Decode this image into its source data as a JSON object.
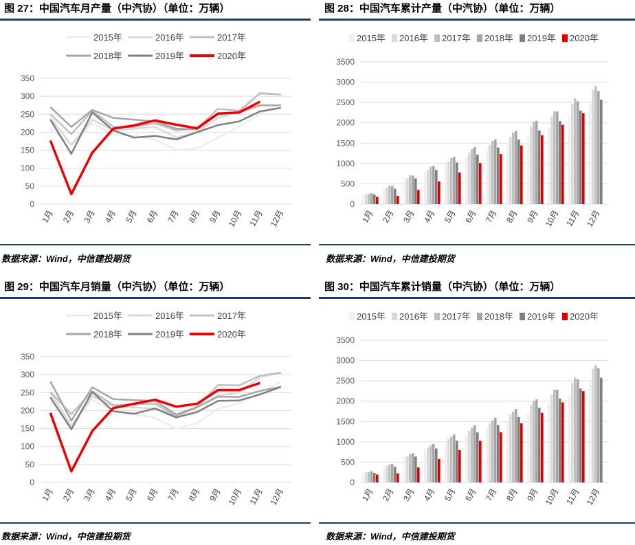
{
  "source_label": "数据来源：Wind，中信建投期货",
  "months": [
    "1月",
    "2月",
    "3月",
    "4月",
    "5月",
    "6月",
    "7月",
    "8月",
    "9月",
    "10月",
    "11月",
    "12月"
  ],
  "series_style": [
    {
      "name": "2015年",
      "line": "#ececec",
      "bar": "#f0f0f0"
    },
    {
      "name": "2016年",
      "line": "#d9d9d9",
      "bar": "#d9d9d9"
    },
    {
      "name": "2017年",
      "line": "#bfbfbf",
      "bar": "#bfbfbf"
    },
    {
      "name": "2018年",
      "line": "#a6a6a6",
      "bar": "#a6a6a6"
    },
    {
      "name": "2019年",
      "line": "#7f7f7f",
      "bar": "#7f7f7f"
    },
    {
      "name": "2020年",
      "line": "#ee0000",
      "bar": "#e00000"
    }
  ],
  "chart_data": [
    {
      "title": "图 27：中国汽车月产量（中汽协）（单位：万辆）",
      "type": "line",
      "ylim": [
        0,
        350
      ],
      "yticks": [
        0,
        50,
        100,
        150,
        200,
        250,
        300,
        350
      ],
      "categories": [
        "1月",
        "2月",
        "3月",
        "4月",
        "5月",
        "6月",
        "7月",
        "8月",
        "9月",
        "10月",
        "11月",
        "12月"
      ],
      "series": [
        {
          "name": "2015年",
          "values": [
            210,
            165,
            225,
            195,
            190,
            180,
            150,
            155,
            185,
            215,
            250,
            280
          ]
        },
        {
          "name": "2016年",
          "values": [
            240,
            165,
            235,
            205,
            210,
            215,
            185,
            200,
            240,
            255,
            310,
            305
          ]
        },
        {
          "name": "2017年",
          "values": [
            250,
            195,
            260,
            215,
            215,
            225,
            205,
            210,
            265,
            260,
            308,
            305
          ]
        },
        {
          "name": "2018年",
          "values": [
            270,
            215,
            262,
            240,
            235,
            230,
            210,
            208,
            250,
            255,
            275,
            275
          ]
        },
        {
          "name": "2019年",
          "values": [
            235,
            140,
            255,
            205,
            185,
            190,
            180,
            200,
            220,
            230,
            258,
            268
          ]
        },
        {
          "name": "2020年",
          "values": [
            177,
            28,
            143,
            210,
            219,
            233,
            221,
            211,
            252,
            255,
            285,
            null
          ]
        }
      ],
      "grid": true,
      "legend": "top"
    },
    {
      "title": "图 28：中国汽车累计产量（中汽协）（单位：万辆）",
      "type": "bar",
      "ylim": [
        0,
        3500
      ],
      "yticks": [
        0,
        500,
        1000,
        1500,
        2000,
        2500,
        3000,
        3500
      ],
      "categories": [
        "1月",
        "2月",
        "3月",
        "4月",
        "5月",
        "6月",
        "7月",
        "8月",
        "9月",
        "10月",
        "11月",
        "12月"
      ],
      "series": [
        {
          "name": "2015年",
          "values": [
            212,
            375,
            599,
            800,
            990,
            1170,
            1320,
            1470,
            1660,
            1880,
            2130,
            2450
          ]
        },
        {
          "name": "2016年",
          "values": [
            238,
            401,
            638,
            843,
            1053,
            1272,
            1457,
            1655,
            1897,
            2151,
            2463,
            2812
          ]
        },
        {
          "name": "2017年",
          "values": [
            255,
            449,
            710,
            923,
            1135,
            1353,
            1554,
            1762,
            2028,
            2288,
            2598,
            2902
          ]
        },
        {
          "name": "2018年",
          "values": [
            266,
            448,
            700,
            937,
            1162,
            1406,
            1591,
            1799,
            2051,
            2280,
            2532,
            2781
          ]
        },
        {
          "name": "2019年",
          "values": [
            237,
            378,
            634,
            839,
            1024,
            1214,
            1394,
            1589,
            1813,
            2045,
            2303,
            2572
          ]
        },
        {
          "name": "2020年",
          "values": [
            177,
            205,
            348,
            558,
            777,
            1011,
            1232,
            1443,
            1696,
            1951,
            2237,
            null
          ]
        }
      ],
      "grid": true,
      "legend": "top"
    },
    {
      "title": "图 29：中国汽车月销量（中汽协）（单位：万辆）",
      "type": "line",
      "ylim": [
        0,
        350
      ],
      "yticks": [
        0,
        50,
        100,
        150,
        200,
        250,
        300,
        350
      ],
      "categories": [
        "1月",
        "2月",
        "3月",
        "4月",
        "5月",
        "6月",
        "7月",
        "8月",
        "9月",
        "10月",
        "11月",
        "12月"
      ],
      "series": [
        {
          "name": "2015年",
          "values": [
            225,
            160,
            230,
            200,
            190,
            180,
            150,
            165,
            205,
            220,
            250,
            280
          ]
        },
        {
          "name": "2016年",
          "values": [
            250,
            158,
            240,
            212,
            209,
            205,
            185,
            208,
            242,
            250,
            293,
            305
          ]
        },
        {
          "name": "2017年",
          "values": [
            252,
            190,
            254,
            215,
            217,
            219,
            184,
            210,
            271,
            270,
            297,
            306
          ]
        },
        {
          "name": "2018年",
          "values": [
            281,
            172,
            265,
            232,
            229,
            227,
            189,
            210,
            239,
            238,
            255,
            266
          ]
        },
        {
          "name": "2019年",
          "values": [
            237,
            148,
            252,
            198,
            191,
            206,
            181,
            196,
            227,
            228,
            245,
            266
          ]
        },
        {
          "name": "2020年",
          "values": [
            194,
            31,
            143,
            207,
            219,
            230,
            211,
            219,
            257,
            257,
            277,
            null
          ]
        }
      ],
      "grid": true,
      "legend": "top"
    },
    {
      "title": "图 30：中国汽车累计销量（中汽协）（单位：万辆）",
      "type": "bar",
      "ylim": [
        0,
        3500
      ],
      "yticks": [
        0,
        500,
        1000,
        1500,
        2000,
        2500,
        3000,
        3500
      ],
      "categories": [
        "1月",
        "2月",
        "3月",
        "4月",
        "5月",
        "6月",
        "7月",
        "8月",
        "9月",
        "10月",
        "11月",
        "12月"
      ],
      "series": [
        {
          "name": "2015年",
          "values": [
            225,
            385,
            615,
            815,
            1005,
            1185,
            1335,
            1500,
            1705,
            1925,
            2175,
            2455
          ]
        },
        {
          "name": "2016年",
          "values": [
            250,
            408,
            648,
            860,
            1069,
            1274,
            1459,
            1667,
            1909,
            2159,
            2452,
            2802
          ]
        },
        {
          "name": "2017年",
          "values": [
            252,
            442,
            696,
            911,
            1128,
            1347,
            1531,
            1741,
            2012,
            2282,
            2579,
            2888
          ]
        },
        {
          "name": "2018年",
          "values": [
            281,
            453,
            718,
            950,
            1179,
            1406,
            1595,
            1805,
            2044,
            2282,
            2537,
            2808
          ]
        },
        {
          "name": "2019年",
          "values": [
            237,
            385,
            637,
            835,
            1026,
            1232,
            1413,
            1609,
            1837,
            2065,
            2311,
            2577
          ]
        },
        {
          "name": "2020年",
          "values": [
            194,
            225,
            368,
            575,
            794,
            1025,
            1236,
            1455,
            1712,
            1969,
            2247,
            null
          ]
        }
      ],
      "grid": true,
      "legend": "top"
    }
  ]
}
